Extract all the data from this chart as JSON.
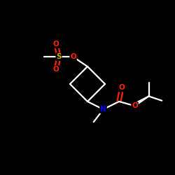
{
  "bg_color": "#000000",
  "bond_color": "#ffffff",
  "atom_colors": {
    "O": "#ff2200",
    "S": "#ccaa00",
    "N": "#0000ff",
    "C": "#ffffff"
  },
  "figsize": [
    2.5,
    2.5
  ],
  "dpi": 100,
  "lw": 1.6,
  "fs": 7.5
}
